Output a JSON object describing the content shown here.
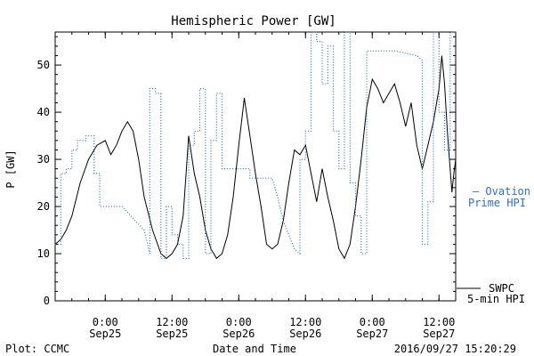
{
  "chart_data": {
    "type": "line",
    "title": "Hemispheric Power [GW]",
    "ylabel": "P [GW]",
    "xlabel": "Date and Time",
    "ylim": [
      0,
      57
    ],
    "yticks": [
      0,
      10,
      20,
      30,
      40,
      50
    ],
    "xlim": [
      "2016-09-24 15:00",
      "2016-09-27 15:00"
    ],
    "xticks": [
      {
        "t": "2016-09-25 00:00",
        "line1": "0:00",
        "line2": "Sep25"
      },
      {
        "t": "2016-09-25 12:00",
        "line1": "12:00",
        "line2": "Sep25"
      },
      {
        "t": "2016-09-26 00:00",
        "line1": "0:00",
        "line2": "Sep26"
      },
      {
        "t": "2016-09-26 12:00",
        "line1": "12:00",
        "line2": "Sep26"
      },
      {
        "t": "2016-09-27 00:00",
        "line1": "0:00",
        "line2": "Sep27"
      },
      {
        "t": "2016-09-27 12:00",
        "line1": "12:00",
        "line2": "Sep27"
      }
    ],
    "series": [
      {
        "name": "SWPC 5-min HPI",
        "label_lines": [
          "SWPC",
          "5-min HPI"
        ],
        "color": "#000000",
        "style": "solid",
        "points": [
          [
            "2016-09-24 15:00",
            12
          ],
          [
            "2016-09-24 16:00",
            13
          ],
          [
            "2016-09-24 17:00",
            15
          ],
          [
            "2016-09-24 18:00",
            18
          ],
          [
            "2016-09-24 19:30",
            25
          ],
          [
            "2016-09-24 21:00",
            30
          ],
          [
            "2016-09-24 22:30",
            33
          ],
          [
            "2016-09-25 00:00",
            34
          ],
          [
            "2016-09-25 01:00",
            31
          ],
          [
            "2016-09-25 02:00",
            33
          ],
          [
            "2016-09-25 03:00",
            36
          ],
          [
            "2016-09-25 04:00",
            38
          ],
          [
            "2016-09-25 05:00",
            36
          ],
          [
            "2016-09-25 06:00",
            30
          ],
          [
            "2016-09-25 07:00",
            22
          ],
          [
            "2016-09-25 08:30",
            15
          ],
          [
            "2016-09-25 10:00",
            10
          ],
          [
            "2016-09-25 11:00",
            9
          ],
          [
            "2016-09-25 12:00",
            10
          ],
          [
            "2016-09-25 13:00",
            12
          ],
          [
            "2016-09-25 14:00",
            18
          ],
          [
            "2016-09-25 15:00",
            35
          ],
          [
            "2016-09-25 16:00",
            27
          ],
          [
            "2016-09-25 17:00",
            22
          ],
          [
            "2016-09-25 18:00",
            15
          ],
          [
            "2016-09-25 19:00",
            11
          ],
          [
            "2016-09-25 20:00",
            9
          ],
          [
            "2016-09-25 21:00",
            10
          ],
          [
            "2016-09-25 22:00",
            14
          ],
          [
            "2016-09-25 23:00",
            22
          ],
          [
            "2016-09-26 00:00",
            33
          ],
          [
            "2016-09-26 01:00",
            43
          ],
          [
            "2016-09-26 02:00",
            35
          ],
          [
            "2016-09-26 03:00",
            27
          ],
          [
            "2016-09-26 04:00",
            20
          ],
          [
            "2016-09-26 05:00",
            12
          ],
          [
            "2016-09-26 06:00",
            11
          ],
          [
            "2016-09-26 07:00",
            12
          ],
          [
            "2016-09-26 08:00",
            17
          ],
          [
            "2016-09-26 09:00",
            25
          ],
          [
            "2016-09-26 10:00",
            32
          ],
          [
            "2016-09-26 11:00",
            31
          ],
          [
            "2016-09-26 12:00",
            33
          ],
          [
            "2016-09-26 13:00",
            27
          ],
          [
            "2016-09-26 14:00",
            21
          ],
          [
            "2016-09-26 15:00",
            28
          ],
          [
            "2016-09-26 16:00",
            22
          ],
          [
            "2016-09-26 17:00",
            17
          ],
          [
            "2016-09-26 18:00",
            11
          ],
          [
            "2016-09-26 19:00",
            9
          ],
          [
            "2016-09-26 20:00",
            12
          ],
          [
            "2016-09-26 21:00",
            20
          ],
          [
            "2016-09-26 22:00",
            30
          ],
          [
            "2016-09-26 23:00",
            41
          ],
          [
            "2016-09-27 00:00",
            47
          ],
          [
            "2016-09-27 01:00",
            45
          ],
          [
            "2016-09-27 02:00",
            42
          ],
          [
            "2016-09-27 03:00",
            44
          ],
          [
            "2016-09-27 04:00",
            46
          ],
          [
            "2016-09-27 05:00",
            42
          ],
          [
            "2016-09-27 06:00",
            37
          ],
          [
            "2016-09-27 07:00",
            42
          ],
          [
            "2016-09-27 08:00",
            33
          ],
          [
            "2016-09-27 09:00",
            28
          ],
          [
            "2016-09-27 10:00",
            33
          ],
          [
            "2016-09-27 11:00",
            38
          ],
          [
            "2016-09-27 12:00",
            45
          ],
          [
            "2016-09-27 12:30",
            52
          ],
          [
            "2016-09-27 13:00",
            46
          ],
          [
            "2016-09-27 13:30",
            36
          ],
          [
            "2016-09-27 14:00",
            28
          ],
          [
            "2016-09-27 14:20",
            23
          ],
          [
            "2016-09-27 14:40",
            27
          ],
          [
            "2016-09-27 15:00",
            30
          ]
        ]
      },
      {
        "name": "Ovation Prime HPI",
        "label_lines": [
          "— Ovation",
          "Prime HPI"
        ],
        "color": "#2f6fc6",
        "style": "dotted",
        "points": [
          [
            "2016-09-24 15:00",
            12
          ],
          [
            "2016-09-24 16:00",
            12
          ],
          [
            "2016-09-24 16:00",
            27
          ],
          [
            "2016-09-24 17:00",
            27
          ],
          [
            "2016-09-24 17:00",
            28
          ],
          [
            "2016-09-24 18:00",
            28
          ],
          [
            "2016-09-24 18:00",
            32
          ],
          [
            "2016-09-24 19:00",
            32
          ],
          [
            "2016-09-24 19:00",
            34
          ],
          [
            "2016-09-24 20:30",
            34
          ],
          [
            "2016-09-24 20:30",
            35
          ],
          [
            "2016-09-24 22:00",
            35
          ],
          [
            "2016-09-24 22:00",
            27
          ],
          [
            "2016-09-24 23:00",
            27
          ],
          [
            "2016-09-24 23:00",
            20
          ],
          [
            "2016-09-25 03:00",
            20
          ],
          [
            "2016-09-25 07:00",
            15
          ],
          [
            "2016-09-25 08:00",
            10
          ],
          [
            "2016-09-25 08:00",
            45
          ],
          [
            "2016-09-25 09:00",
            45
          ],
          [
            "2016-09-25 09:00",
            44
          ],
          [
            "2016-09-25 10:00",
            44
          ],
          [
            "2016-09-25 10:00",
            9
          ],
          [
            "2016-09-25 11:00",
            9
          ],
          [
            "2016-09-25 11:00",
            20
          ],
          [
            "2016-09-25 12:00",
            20
          ],
          [
            "2016-09-25 12:00",
            14
          ],
          [
            "2016-09-25 13:00",
            14
          ],
          [
            "2016-09-25 13:00",
            12
          ],
          [
            "2016-09-25 14:00",
            12
          ],
          [
            "2016-09-25 14:00",
            9
          ],
          [
            "2016-09-25 15:00",
            9
          ],
          [
            "2016-09-25 15:00",
            33
          ],
          [
            "2016-09-25 16:00",
            33
          ],
          [
            "2016-09-25 16:00",
            36
          ],
          [
            "2016-09-25 17:00",
            36
          ],
          [
            "2016-09-25 17:00",
            45
          ],
          [
            "2016-09-25 18:00",
            45
          ],
          [
            "2016-09-25 18:00",
            10
          ],
          [
            "2016-09-25 19:00",
            10
          ],
          [
            "2016-09-25 19:00",
            34
          ],
          [
            "2016-09-25 20:00",
            34
          ],
          [
            "2016-09-25 20:00",
            44
          ],
          [
            "2016-09-25 21:00",
            44
          ],
          [
            "2016-09-25 21:00",
            28
          ],
          [
            "2016-09-26 02:00",
            28
          ],
          [
            "2016-09-26 02:00",
            26
          ],
          [
            "2016-09-26 03:00",
            26
          ],
          [
            "2016-09-26 06:00",
            26
          ],
          [
            "2016-09-26 07:00",
            22
          ],
          [
            "2016-09-26 08:00",
            17
          ],
          [
            "2016-09-26 09:00",
            14
          ],
          [
            "2016-09-26 10:00",
            11
          ],
          [
            "2016-09-26 11:00",
            10
          ],
          [
            "2016-09-26 11:00",
            30
          ],
          [
            "2016-09-26 12:00",
            30
          ],
          [
            "2016-09-26 12:00",
            36
          ],
          [
            "2016-09-26 13:00",
            36
          ],
          [
            "2016-09-26 13:00",
            57
          ],
          [
            "2016-09-26 14:00",
            57
          ],
          [
            "2016-09-26 14:00",
            55
          ],
          [
            "2016-09-26 15:00",
            55
          ],
          [
            "2016-09-26 15:00",
            46
          ],
          [
            "2016-09-26 16:00",
            46
          ],
          [
            "2016-09-26 16:00",
            54
          ],
          [
            "2016-09-26 17:00",
            54
          ],
          [
            "2016-09-26 17:00",
            36
          ],
          [
            "2016-09-26 18:00",
            36
          ],
          [
            "2016-09-26 18:00",
            28
          ],
          [
            "2016-09-26 19:00",
            28
          ],
          [
            "2016-09-26 19:00",
            57
          ],
          [
            "2016-09-26 20:00",
            57
          ],
          [
            "2016-09-26 20:00",
            25
          ],
          [
            "2016-09-26 21:00",
            25
          ],
          [
            "2016-09-26 21:00",
            18
          ],
          [
            "2016-09-26 22:00",
            18
          ],
          [
            "2016-09-26 22:00",
            10
          ],
          [
            "2016-09-26 23:00",
            10
          ],
          [
            "2016-09-26 23:00",
            53
          ],
          [
            "2016-09-27 04:00",
            53
          ],
          [
            "2016-09-27 08:00",
            52
          ],
          [
            "2016-09-27 09:00",
            51
          ],
          [
            "2016-09-27 09:00",
            12
          ],
          [
            "2016-09-27 10:00",
            12
          ],
          [
            "2016-09-27 10:00",
            21
          ],
          [
            "2016-09-27 11:00",
            21
          ],
          [
            "2016-09-27 11:00",
            57
          ],
          [
            "2016-09-27 12:00",
            57
          ],
          [
            "2016-09-27 12:00",
            40
          ],
          [
            "2016-09-27 13:00",
            40
          ],
          [
            "2016-09-27 13:00",
            32
          ],
          [
            "2016-09-27 14:00",
            32
          ],
          [
            "2016-09-27 14:00",
            57
          ],
          [
            "2016-09-27 15:00",
            57
          ]
        ]
      }
    ]
  },
  "footer": {
    "plot_credit": "Plot: CCMC",
    "timestamp": "2016/09/27 15:20:29"
  }
}
